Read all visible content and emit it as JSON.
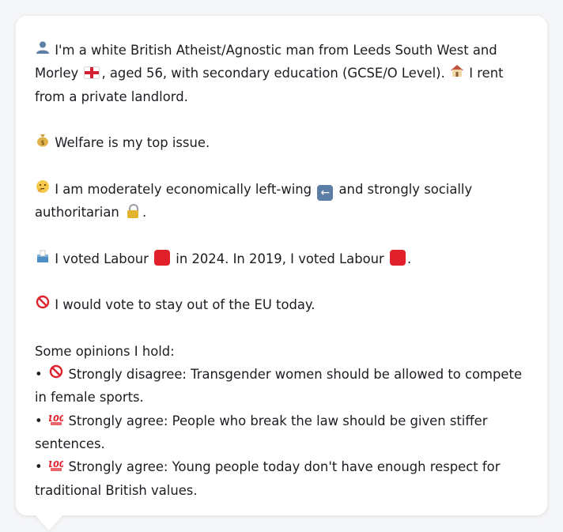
{
  "profile": {
    "intro_icon": "person-silhouette-icon",
    "intro_a": "I'm a white British Atheist/Agnostic man from Leeds South West and Morley",
    "intro_b": ", aged 56, with secondary education (GCSE/O Level).",
    "intro_c": "I rent from a private landlord.",
    "house_icon": "house-icon",
    "flag_icon": "england-flag-icon",
    "top_issue_icon": "money-bag-icon",
    "top_issue": "Welfare is my top issue.",
    "ideology_icon": "thinking-face-icon",
    "ideology_a": "I am moderately economically left-wing",
    "ideology_b": "and strongly socially authoritarian",
    "ideology_end": ".",
    "left_arrow_icon": "left-arrow-icon",
    "lock_icon": "lock-icon",
    "vote_icon": "ballot-box-icon",
    "vote_a": "I voted Labour",
    "vote_b": "in 2024. In 2019, I voted Labour",
    "vote_end": ".",
    "party_color": "#e0212b",
    "eu_icon": "prohibited-icon",
    "eu": "I would vote to stay out of the EU today.",
    "opinions_heading": "Some opinions I hold:",
    "opinions": [
      {
        "icon": "prohibited-icon",
        "label": "Strongly disagree: Transgender women should be allowed to compete in female sports."
      },
      {
        "icon": "hundred-points-icon",
        "label": "Strongly agree: People who break the law should be given stiffer sentences."
      },
      {
        "icon": "hundred-points-icon",
        "label": "Strongly agree: Young people today don't have enough respect for traditional British values."
      }
    ]
  }
}
